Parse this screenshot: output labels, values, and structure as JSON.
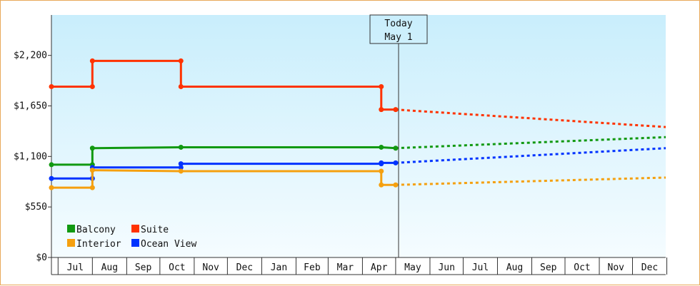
{
  "chart_data": {
    "type": "line",
    "today_marker": {
      "line1": "Today",
      "line2": "May 1",
      "x": "May 1"
    },
    "y_ticks": [
      "$0",
      "$550",
      "$1,100",
      "$1,650",
      "$2,200"
    ],
    "ylim": [
      0,
      2640
    ],
    "x_tick_labels": [
      "Jul",
      "Aug",
      "Sep",
      "Oct",
      "Nov",
      "Dec",
      "Jan",
      "Feb",
      "Mar",
      "Apr",
      "May",
      "Jun",
      "Jul",
      "Aug",
      "Sep",
      "Oct",
      "Nov",
      "Dec"
    ],
    "series": [
      {
        "name": "Suite",
        "color": "#ff3300",
        "history": [
          [
            "Jun 25",
            1860
          ],
          [
            "Aug 1",
            1860
          ],
          [
            "Aug 1",
            2140
          ],
          [
            "Oct 20",
            2140
          ],
          [
            "Oct 20",
            1860
          ],
          [
            "Apr 18",
            1860
          ],
          [
            "Apr 18",
            1610
          ],
          [
            "May 1",
            1610
          ]
        ],
        "forecast": [
          [
            "May 1",
            1610
          ],
          [
            "Dec 31",
            1420
          ]
        ]
      },
      {
        "name": "Balcony",
        "color": "#119911",
        "history": [
          [
            "Jun 25",
            1010
          ],
          [
            "Aug 1",
            1010
          ],
          [
            "Aug 1",
            1190
          ],
          [
            "Oct 20",
            1200
          ],
          [
            "Apr 18",
            1200
          ],
          [
            "May 1",
            1190
          ]
        ],
        "forecast": [
          [
            "May 1",
            1190
          ],
          [
            "Dec 31",
            1310
          ]
        ]
      },
      {
        "name": "Ocean View",
        "color": "#0033ff",
        "history": [
          [
            "Jun 25",
            860
          ],
          [
            "Aug 1",
            860
          ],
          [
            "Aug 1",
            980
          ],
          [
            "Oct 20",
            980
          ],
          [
            "Oct 20",
            1020
          ],
          [
            "Apr 18",
            1020
          ],
          [
            "Apr 18",
            1030
          ],
          [
            "May 1",
            1030
          ]
        ],
        "forecast": [
          [
            "May 1",
            1030
          ],
          [
            "Dec 31",
            1190
          ]
        ]
      },
      {
        "name": "Interior",
        "color": "#f5a00f",
        "history": [
          [
            "Jun 25",
            760
          ],
          [
            "Aug 1",
            760
          ],
          [
            "Aug 1",
            950
          ],
          [
            "Oct 20",
            940
          ],
          [
            "Apr 18",
            940
          ],
          [
            "Apr 18",
            790
          ],
          [
            "May 1",
            790
          ]
        ],
        "forecast": [
          [
            "May 1",
            790
          ],
          [
            "Dec 31",
            870
          ]
        ]
      }
    ],
    "legend": {
      "placement": "bottom-left",
      "items": [
        {
          "name": "Balcony",
          "color": "#119911"
        },
        {
          "name": "Suite",
          "color": "#ff3300"
        },
        {
          "name": "Interior",
          "color": "#f5a00f"
        },
        {
          "name": "Ocean View",
          "color": "#0033ff"
        }
      ]
    }
  }
}
